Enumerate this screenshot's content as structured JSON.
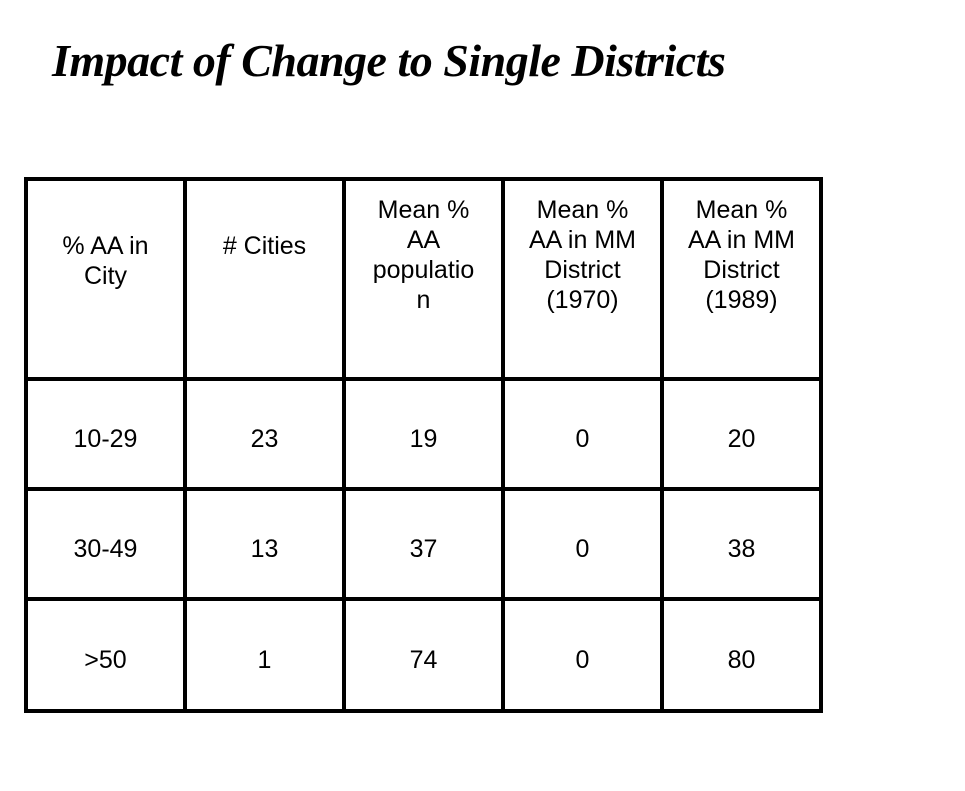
{
  "title": "Impact of Change to Single Districts",
  "colors": {
    "background": "#ffffff",
    "text": "#000000",
    "table_border": "#000000"
  },
  "chart_data": {
    "type": "table",
    "title": "Impact of Change to Single Districts",
    "columns": [
      "% AA in City",
      "# Cities",
      "Mean % AA population",
      "Mean % AA in MM District (1970)",
      "Mean % AA in MM District (1989)"
    ],
    "header_display": [
      "% AA in\nCity",
      "# Cities",
      "Mean %\nAA\npopulatio\nn",
      "Mean %\nAA in MM\nDistrict\n(1970)",
      "Mean %\nAA in MM\nDistrict\n(1989)"
    ],
    "rows": [
      [
        "10-29",
        "23",
        "19",
        "0",
        "20"
      ],
      [
        "30-49",
        "13",
        "37",
        "0",
        "38"
      ],
      [
        ">50",
        "1",
        "74",
        "0",
        "80"
      ]
    ]
  }
}
